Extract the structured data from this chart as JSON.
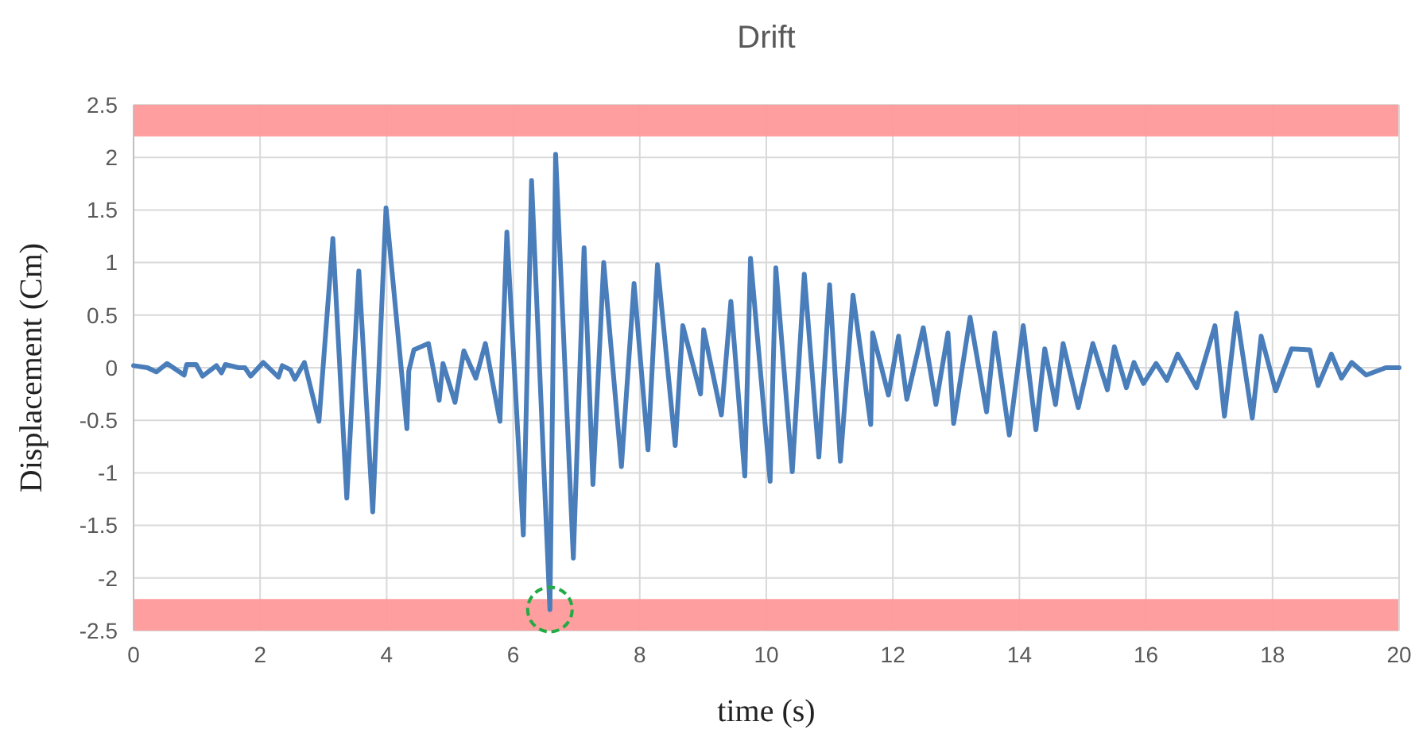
{
  "chart_data": {
    "type": "line",
    "title": "Drift",
    "xlabel": "time (s)",
    "ylabel": "Displacement (Cm)",
    "xlim": [
      0,
      20
    ],
    "xticks": [
      0,
      2,
      4,
      6,
      8,
      10,
      12,
      14,
      16,
      18,
      20
    ],
    "ylim": [
      -2.5,
      2.5
    ],
    "yticks": [
      -2.5,
      -2,
      -1.5,
      -1,
      -0.5,
      0,
      0.5,
      1,
      1.5,
      2,
      2.5
    ],
    "grid": true,
    "line_style": "solid",
    "marker": "none",
    "bands": [
      {
        "axis": "y",
        "from": 2.2,
        "to": 2.5,
        "color": "#ff9999"
      },
      {
        "axis": "y",
        "from": -2.5,
        "to": -2.2,
        "color": "#ff9999"
      }
    ],
    "series": [
      {
        "color": "#4a7ebb",
        "x": [
          0,
          0.22,
          0.36,
          0.53,
          0.8,
          0.84,
          0.99,
          1.09,
          1.31,
          1.39,
          1.45,
          1.66,
          1.76,
          1.85,
          2.05,
          2.29,
          2.35,
          2.48,
          2.55,
          2.7,
          2.93,
          3.15,
          3.37,
          3.56,
          3.78,
          3.99,
          4.32,
          4.35,
          4.43,
          4.66,
          4.83,
          4.89,
          5.08,
          5.22,
          5.41,
          5.56,
          5.79,
          5.9,
          6.16,
          6.29,
          6.58,
          6.67,
          6.95,
          7.12,
          7.26,
          7.43,
          7.71,
          7.91,
          8.13,
          8.28,
          8.56,
          8.68,
          8.96,
          9.01,
          9.29,
          9.44,
          9.66,
          9.75,
          10.06,
          10.15,
          10.41,
          10.6,
          10.83,
          11.0,
          11.17,
          11.37,
          11.65,
          11.68,
          11.93,
          12.09,
          12.22,
          12.48,
          12.68,
          12.87,
          12.96,
          13.22,
          13.48,
          13.61,
          13.84,
          14.06,
          14.26,
          14.4,
          14.57,
          14.69,
          14.93,
          15.16,
          15.39,
          15.5,
          15.69,
          15.81,
          15.96,
          16.16,
          16.33,
          16.5,
          16.8,
          17.09,
          17.24,
          17.43,
          17.68,
          17.82,
          18.05,
          18.3,
          18.59,
          18.72,
          18.93,
          19.09,
          19.25,
          19.48,
          19.79,
          20
        ],
        "values": [
          0.02,
          0,
          -0.04,
          0.04,
          -0.07,
          0.03,
          0.03,
          -0.08,
          0.02,
          -0.05,
          0.03,
          0,
          0,
          -0.08,
          0.05,
          -0.09,
          0.02,
          -0.02,
          -0.11,
          0.05,
          -0.51,
          1.23,
          -1.24,
          0.92,
          -1.37,
          1.52,
          -0.58,
          -0.03,
          0.17,
          0.23,
          -0.31,
          0.04,
          -0.33,
          0.16,
          -0.1,
          0.23,
          -0.51,
          1.29,
          -1.59,
          1.78,
          -2.3,
          2.03,
          -1.81,
          1.14,
          -1.11,
          1.0,
          -0.94,
          0.8,
          -0.78,
          0.98,
          -0.74,
          0.4,
          -0.25,
          0.36,
          -0.45,
          0.63,
          -1.03,
          1.04,
          -1.08,
          0.95,
          -0.99,
          0.89,
          -0.85,
          0.79,
          -0.89,
          0.69,
          -0.54,
          0.33,
          -0.26,
          0.3,
          -0.3,
          0.38,
          -0.35,
          0.33,
          -0.53,
          0.48,
          -0.42,
          0.33,
          -0.64,
          0.4,
          -0.59,
          0.18,
          -0.35,
          0.23,
          -0.38,
          0.23,
          -0.21,
          0.2,
          -0.19,
          0.05,
          -0.15,
          0.04,
          -0.12,
          0.13,
          -0.19,
          0.4,
          -0.46,
          0.52,
          -0.48,
          0.3,
          -0.22,
          0.18,
          0.17,
          -0.17,
          0.13,
          -0.1,
          0.05,
          -0.07,
          0,
          0
        ]
      },
      {
        "type": "scatter",
        "color": "#22aa44",
        "marker": "circle",
        "line_style": "dashed",
        "x": [
          6.58
        ],
        "values": [
          -2.3
        ]
      }
    ]
  }
}
